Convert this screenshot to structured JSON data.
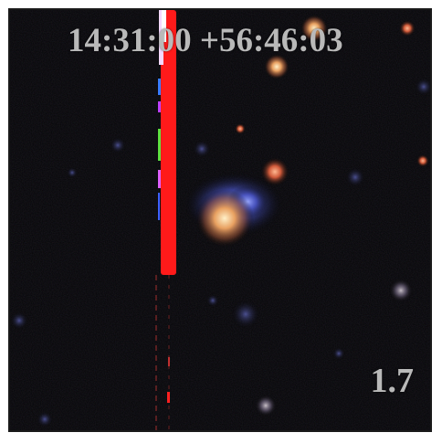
{
  "image": {
    "coordinates": "14:31:00 +56:46:03",
    "scale_label": "1.7",
    "background_color": "#050507",
    "label_color": "#b9b9b9",
    "artifact_color": "#ff1a1a"
  }
}
